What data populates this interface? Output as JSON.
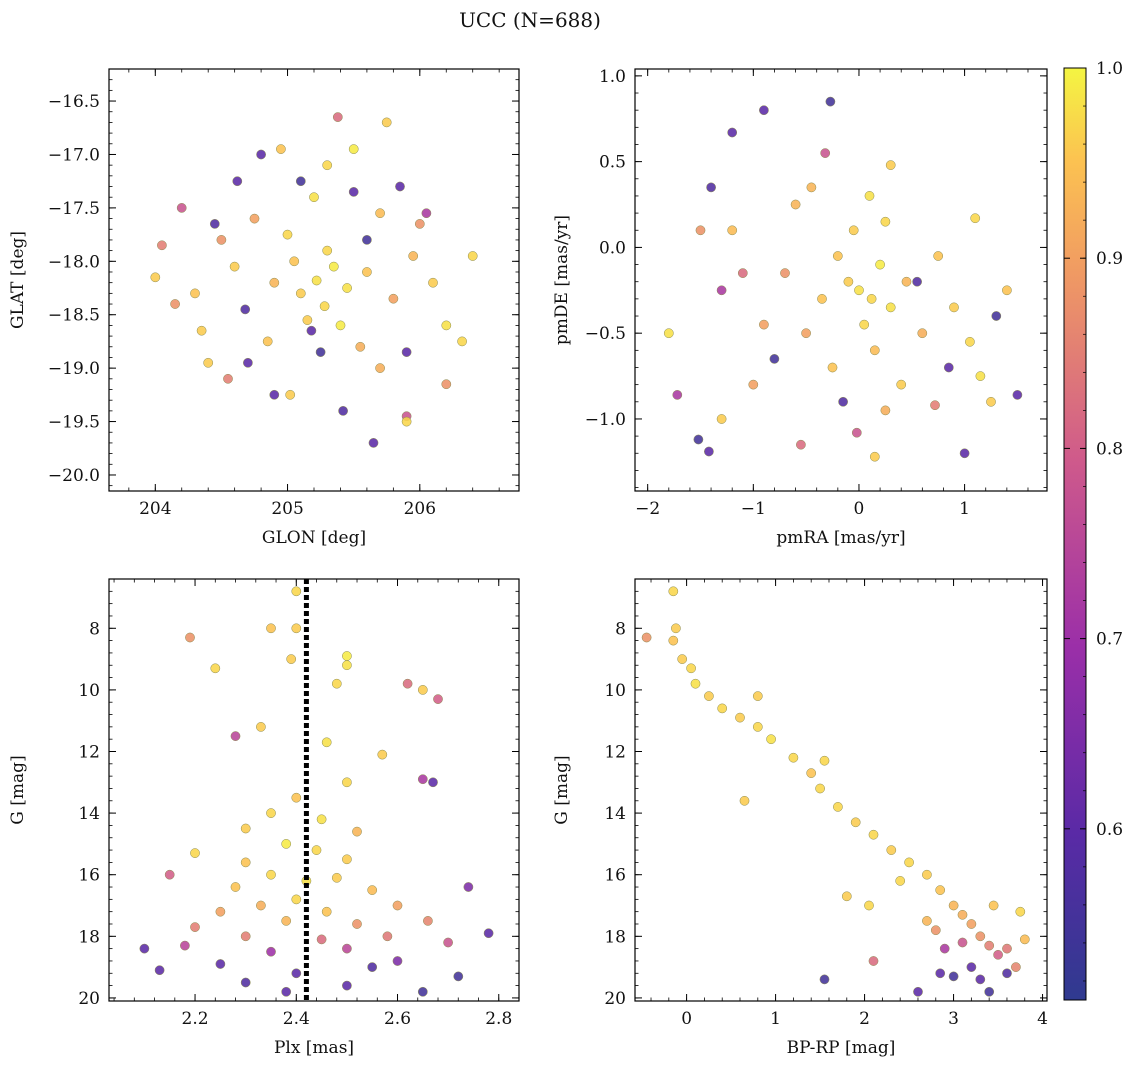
{
  "figure": {
    "title": "UCC (N=688)",
    "colorbar": {
      "colormap": "plasma",
      "range": [
        0.51,
        1.0
      ],
      "ticks": [
        0.6,
        0.7,
        0.8,
        0.9,
        1.0
      ],
      "tick_labels": [
        "0.6",
        "0.7",
        "0.8",
        "0.9",
        "1.0"
      ]
    }
  },
  "chart_data": [
    {
      "type": "scatter",
      "xlabel": "GLON [deg]",
      "ylabel": "GLAT [deg]",
      "xlim": [
        203.65,
        206.75
      ],
      "ylim": [
        -20.15,
        -16.2
      ],
      "xticks": [
        204,
        205,
        206
      ],
      "xtick_labels": [
        "204",
        "205",
        "206"
      ],
      "yticks": [
        -20.0,
        -19.5,
        -19.0,
        -18.5,
        -18.0,
        -17.5,
        -17.0,
        -16.5
      ],
      "ytick_labels": [
        "−20.0",
        "−19.5",
        "−19.0",
        "−18.5",
        "−18.0",
        "−17.5",
        "−17.0",
        "−16.5"
      ],
      "points": [
        [
          205.22,
          -18.18,
          0.98
        ],
        [
          205.1,
          -18.3,
          0.96
        ],
        [
          205.35,
          -18.05,
          0.99
        ],
        [
          205.28,
          -18.42,
          0.97
        ],
        [
          205.05,
          -18.0,
          0.95
        ],
        [
          205.45,
          -18.25,
          0.98
        ],
        [
          205.3,
          -17.9,
          0.97
        ],
        [
          205.15,
          -18.55,
          0.96
        ],
        [
          204.9,
          -18.2,
          0.93
        ],
        [
          205.6,
          -18.1,
          0.95
        ],
        [
          205.4,
          -18.6,
          0.99
        ],
        [
          205.0,
          -17.75,
          0.97
        ],
        [
          204.75,
          -17.6,
          0.9
        ],
        [
          205.7,
          -17.55,
          0.94
        ],
        [
          205.55,
          -18.8,
          0.92
        ],
        [
          204.85,
          -18.75,
          0.95
        ],
        [
          205.2,
          -17.4,
          0.98
        ],
        [
          205.8,
          -18.35,
          0.9
        ],
        [
          204.6,
          -18.05,
          0.96
        ],
        [
          205.95,
          -17.95,
          0.93
        ],
        [
          204.5,
          -17.8,
          0.88
        ],
        [
          206.1,
          -18.2,
          0.96
        ],
        [
          205.3,
          -17.1,
          0.97
        ],
        [
          205.5,
          -16.95,
          0.99
        ],
        [
          204.3,
          -18.3,
          0.95
        ],
        [
          206.2,
          -18.6,
          0.98
        ],
        [
          204.05,
          -17.85,
          0.85
        ],
        [
          204.0,
          -18.15,
          0.96
        ],
        [
          206.4,
          -17.95,
          0.97
        ],
        [
          205.65,
          -19.7,
          0.6
        ],
        [
          205.38,
          -16.65,
          0.82
        ],
        [
          205.75,
          -16.7,
          0.96
        ],
        [
          204.62,
          -17.25,
          0.6
        ],
        [
          204.95,
          -16.95,
          0.95
        ],
        [
          205.1,
          -17.25,
          0.55
        ],
        [
          204.45,
          -17.65,
          0.58
        ],
        [
          204.2,
          -17.5,
          0.78
        ],
        [
          205.85,
          -17.3,
          0.6
        ],
        [
          206.0,
          -17.65,
          0.88
        ],
        [
          205.9,
          -19.45,
          0.78
        ],
        [
          205.42,
          -19.4,
          0.58
        ],
        [
          205.02,
          -19.25,
          0.96
        ],
        [
          204.55,
          -19.1,
          0.85
        ],
        [
          204.7,
          -18.95,
          0.6
        ],
        [
          204.35,
          -18.65,
          0.96
        ],
        [
          206.2,
          -19.15,
          0.88
        ],
        [
          205.9,
          -19.5,
          0.97
        ],
        [
          205.25,
          -18.85,
          0.55
        ],
        [
          205.7,
          -19.0,
          0.92
        ],
        [
          204.8,
          -17.0,
          0.6
        ],
        [
          204.9,
          -19.25,
          0.6
        ],
        [
          205.5,
          -17.35,
          0.6
        ],
        [
          206.05,
          -17.55,
          0.72
        ],
        [
          205.6,
          -17.8,
          0.55
        ],
        [
          206.32,
          -18.75,
          0.97
        ],
        [
          204.15,
          -18.4,
          0.88
        ],
        [
          204.4,
          -18.95,
          0.96
        ],
        [
          205.18,
          -18.65,
          0.6
        ],
        [
          204.68,
          -18.45,
          0.58
        ],
        [
          205.9,
          -18.85,
          0.6
        ]
      ]
    },
    {
      "type": "scatter",
      "xlabel": "pmRA [mas/yr]",
      "ylabel": "pmDE [mas/yr]",
      "xlim": [
        -2.12,
        1.78
      ],
      "ylim": [
        -1.42,
        1.04
      ],
      "xticks": [
        -2,
        -1,
        0,
        1
      ],
      "xtick_labels": [
        "−2",
        "−1",
        "0",
        "1"
      ],
      "yticks": [
        -1.0,
        -0.5,
        0.0,
        0.5,
        1.0
      ],
      "ytick_labels": [
        "−1.0",
        "−0.5",
        "0.0",
        "0.5",
        "1.0"
      ],
      "points": [
        [
          0.0,
          -0.25,
          0.98
        ],
        [
          0.12,
          -0.3,
          0.97
        ],
        [
          -0.1,
          -0.2,
          0.96
        ],
        [
          0.2,
          -0.1,
          0.99
        ],
        [
          0.05,
          -0.45,
          0.97
        ],
        [
          -0.2,
          -0.05,
          0.95
        ],
        [
          0.3,
          -0.35,
          0.98
        ],
        [
          -0.05,
          0.1,
          0.96
        ],
        [
          0.15,
          -0.6,
          0.94
        ],
        [
          -0.35,
          -0.3,
          0.95
        ],
        [
          0.45,
          -0.2,
          0.93
        ],
        [
          0.25,
          0.15,
          0.97
        ],
        [
          -0.5,
          -0.5,
          0.9
        ],
        [
          0.6,
          -0.5,
          0.92
        ],
        [
          -0.25,
          -0.7,
          0.95
        ],
        [
          0.1,
          0.3,
          0.98
        ],
        [
          -0.7,
          -0.15,
          0.88
        ],
        [
          0.75,
          -0.05,
          0.95
        ],
        [
          -0.6,
          0.25,
          0.93
        ],
        [
          0.4,
          -0.8,
          0.96
        ],
        [
          -0.9,
          -0.45,
          0.9
        ],
        [
          0.9,
          -0.35,
          0.96
        ],
        [
          -1.1,
          -0.15,
          0.82
        ],
        [
          1.05,
          -0.55,
          0.97
        ],
        [
          -1.2,
          0.1,
          0.94
        ],
        [
          1.15,
          -0.75,
          0.98
        ],
        [
          -0.27,
          0.85,
          0.55
        ],
        [
          -0.9,
          0.8,
          0.6
        ],
        [
          -1.2,
          0.67,
          0.6
        ],
        [
          -0.32,
          0.55,
          0.78
        ],
        [
          -1.8,
          -0.5,
          0.98
        ],
        [
          -1.72,
          -0.86,
          0.72
        ],
        [
          -1.52,
          -1.12,
          0.55
        ],
        [
          -1.42,
          -1.19,
          0.6
        ],
        [
          -1.3,
          -1.0,
          0.96
        ],
        [
          1.0,
          -1.2,
          0.6
        ],
        [
          0.15,
          -1.22,
          0.96
        ],
        [
          -0.55,
          -1.15,
          0.82
        ],
        [
          1.1,
          0.17,
          0.97
        ],
        [
          1.4,
          -0.25,
          0.95
        ],
        [
          1.5,
          -0.86,
          0.6
        ],
        [
          1.3,
          -0.4,
          0.55
        ],
        [
          0.72,
          -0.92,
          0.85
        ],
        [
          -0.02,
          -1.08,
          0.78
        ],
        [
          0.3,
          0.48,
          0.96
        ],
        [
          -0.45,
          0.35,
          0.93
        ],
        [
          -1.4,
          0.35,
          0.58
        ],
        [
          -1.5,
          0.1,
          0.88
        ],
        [
          -1.0,
          -0.8,
          0.9
        ],
        [
          0.55,
          -0.2,
          0.58
        ],
        [
          -0.8,
          -0.65,
          0.55
        ],
        [
          0.85,
          -0.7,
          0.6
        ],
        [
          -0.15,
          -0.9,
          0.58
        ],
        [
          0.25,
          -0.95,
          0.92
        ],
        [
          -1.3,
          -0.25,
          0.72
        ],
        [
          1.25,
          -0.9,
          0.96
        ]
      ]
    },
    {
      "type": "scatter",
      "xlabel": "Plx [mas]",
      "ylabel": "G [mag]",
      "xlim": [
        2.03,
        2.84
      ],
      "ylim": [
        20.1,
        6.4
      ],
      "y_inverted": true,
      "xticks": [
        2.2,
        2.4,
        2.6,
        2.8
      ],
      "xtick_labels": [
        "2.2",
        "2.4",
        "2.6",
        "2.8"
      ],
      "yticks": [
        8,
        10,
        12,
        14,
        16,
        18,
        20
      ],
      "ytick_labels": [
        "8",
        "10",
        "12",
        "14",
        "16",
        "18",
        "20"
      ],
      "vline": {
        "x": 2.42,
        "style": "dotted",
        "color": "#000000"
      },
      "points": [
        [
          2.4,
          6.8,
          0.97
        ],
        [
          2.19,
          8.3,
          0.88
        ],
        [
          2.35,
          8.0,
          0.95
        ],
        [
          2.4,
          8.0,
          0.96
        ],
        [
          2.24,
          9.3,
          0.97
        ],
        [
          2.39,
          9.0,
          0.96
        ],
        [
          2.5,
          9.2,
          0.98
        ],
        [
          2.5,
          8.9,
          0.99
        ],
        [
          2.48,
          9.8,
          0.97
        ],
        [
          2.62,
          9.8,
          0.82
        ],
        [
          2.65,
          10.0,
          0.96
        ],
        [
          2.68,
          10.3,
          0.8
        ],
        [
          2.28,
          11.5,
          0.75
        ],
        [
          2.33,
          11.2,
          0.96
        ],
        [
          2.46,
          11.7,
          0.98
        ],
        [
          2.57,
          12.1,
          0.96
        ],
        [
          2.5,
          13.0,
          0.97
        ],
        [
          2.65,
          12.9,
          0.72
        ],
        [
          2.67,
          13.0,
          0.6
        ],
        [
          2.4,
          13.5,
          0.95
        ],
        [
          2.35,
          14.0,
          0.97
        ],
        [
          2.3,
          14.5,
          0.96
        ],
        [
          2.45,
          14.2,
          0.98
        ],
        [
          2.52,
          14.6,
          0.93
        ],
        [
          2.38,
          15.0,
          0.99
        ],
        [
          2.44,
          15.2,
          0.97
        ],
        [
          2.3,
          15.6,
          0.95
        ],
        [
          2.5,
          15.5,
          0.96
        ],
        [
          2.35,
          16.0,
          0.97
        ],
        [
          2.42,
          16.2,
          0.98
        ],
        [
          2.48,
          16.1,
          0.96
        ],
        [
          2.28,
          16.4,
          0.95
        ],
        [
          2.55,
          16.5,
          0.94
        ],
        [
          2.4,
          16.8,
          0.97
        ],
        [
          2.33,
          17.0,
          0.92
        ],
        [
          2.46,
          17.2,
          0.95
        ],
        [
          2.25,
          17.2,
          0.9
        ],
        [
          2.6,
          17.0,
          0.9
        ],
        [
          2.38,
          17.5,
          0.93
        ],
        [
          2.52,
          17.6,
          0.88
        ],
        [
          2.2,
          17.7,
          0.85
        ],
        [
          2.66,
          17.5,
          0.86
        ],
        [
          2.3,
          18.0,
          0.85
        ],
        [
          2.45,
          18.1,
          0.82
        ],
        [
          2.58,
          18.0,
          0.84
        ],
        [
          2.18,
          18.3,
          0.75
        ],
        [
          2.7,
          18.2,
          0.78
        ],
        [
          2.35,
          18.5,
          0.7
        ],
        [
          2.5,
          18.4,
          0.75
        ],
        [
          2.1,
          18.4,
          0.6
        ],
        [
          2.78,
          17.9,
          0.6
        ],
        [
          2.74,
          16.4,
          0.65
        ],
        [
          2.15,
          16.0,
          0.8
        ],
        [
          2.2,
          15.3,
          0.97
        ],
        [
          2.25,
          18.9,
          0.6
        ],
        [
          2.4,
          19.2,
          0.6
        ],
        [
          2.55,
          19.0,
          0.58
        ],
        [
          2.65,
          19.8,
          0.55
        ],
        [
          2.38,
          19.8,
          0.6
        ],
        [
          2.6,
          18.8,
          0.65
        ],
        [
          2.13,
          19.1,
          0.6
        ],
        [
          2.72,
          19.3,
          0.55
        ],
        [
          2.3,
          19.5,
          0.58
        ],
        [
          2.5,
          19.6,
          0.6
        ]
      ]
    },
    {
      "type": "scatter",
      "xlabel": "BP-RP [mag]",
      "ylabel": "G [mag]",
      "xlim": [
        -0.58,
        4.05
      ],
      "ylim": [
        20.1,
        6.4
      ],
      "y_inverted": true,
      "xticks": [
        0,
        1,
        2,
        3,
        4
      ],
      "xtick_labels": [
        "0",
        "1",
        "2",
        "3",
        "4"
      ],
      "yticks": [
        8,
        10,
        12,
        14,
        16,
        18,
        20
      ],
      "ytick_labels": [
        "8",
        "10",
        "12",
        "14",
        "16",
        "18",
        "20"
      ],
      "points": [
        [
          -0.15,
          6.8,
          0.97
        ],
        [
          -0.45,
          8.3,
          0.88
        ],
        [
          -0.12,
          8.0,
          0.96
        ],
        [
          -0.15,
          8.4,
          0.95
        ],
        [
          -0.05,
          9.0,
          0.96
        ],
        [
          0.05,
          9.3,
          0.97
        ],
        [
          0.1,
          9.8,
          0.98
        ],
        [
          0.25,
          10.2,
          0.96
        ],
        [
          0.4,
          10.6,
          0.97
        ],
        [
          0.6,
          10.9,
          0.96
        ],
        [
          0.8,
          11.2,
          0.97
        ],
        [
          0.95,
          11.6,
          0.98
        ],
        [
          0.8,
          10.2,
          0.96
        ],
        [
          1.2,
          12.2,
          0.97
        ],
        [
          1.4,
          12.7,
          0.95
        ],
        [
          1.5,
          13.2,
          0.97
        ],
        [
          0.65,
          13.6,
          0.96
        ],
        [
          1.55,
          12.3,
          0.97
        ],
        [
          1.7,
          13.8,
          0.97
        ],
        [
          1.9,
          14.3,
          0.96
        ],
        [
          2.1,
          14.7,
          0.97
        ],
        [
          2.3,
          15.2,
          0.96
        ],
        [
          2.5,
          15.6,
          0.97
        ],
        [
          2.7,
          16.0,
          0.96
        ],
        [
          2.85,
          16.5,
          0.95
        ],
        [
          3.0,
          17.0,
          0.93
        ],
        [
          3.1,
          17.3,
          0.92
        ],
        [
          3.2,
          17.6,
          0.9
        ],
        [
          3.3,
          18.0,
          0.88
        ],
        [
          3.4,
          18.3,
          0.85
        ],
        [
          3.5,
          18.6,
          0.8
        ],
        [
          3.6,
          18.4,
          0.84
        ],
        [
          3.2,
          19.0,
          0.6
        ],
        [
          3.0,
          19.3,
          0.55
        ],
        [
          3.3,
          19.4,
          0.6
        ],
        [
          3.6,
          19.2,
          0.58
        ],
        [
          2.85,
          19.2,
          0.6
        ],
        [
          3.4,
          19.8,
          0.55
        ],
        [
          2.6,
          19.8,
          0.6
        ],
        [
          1.55,
          19.4,
          0.55
        ],
        [
          2.1,
          18.8,
          0.82
        ],
        [
          2.05,
          17.0,
          0.97
        ],
        [
          1.8,
          16.7,
          0.96
        ],
        [
          3.75,
          17.2,
          0.97
        ],
        [
          3.8,
          18.1,
          0.94
        ],
        [
          3.7,
          19.0,
          0.86
        ],
        [
          2.8,
          17.8,
          0.88
        ],
        [
          2.9,
          18.4,
          0.72
        ],
        [
          3.1,
          18.2,
          0.78
        ],
        [
          2.7,
          17.5,
          0.93
        ],
        [
          3.45,
          17.0,
          0.95
        ],
        [
          2.4,
          16.2,
          0.97
        ]
      ]
    }
  ]
}
